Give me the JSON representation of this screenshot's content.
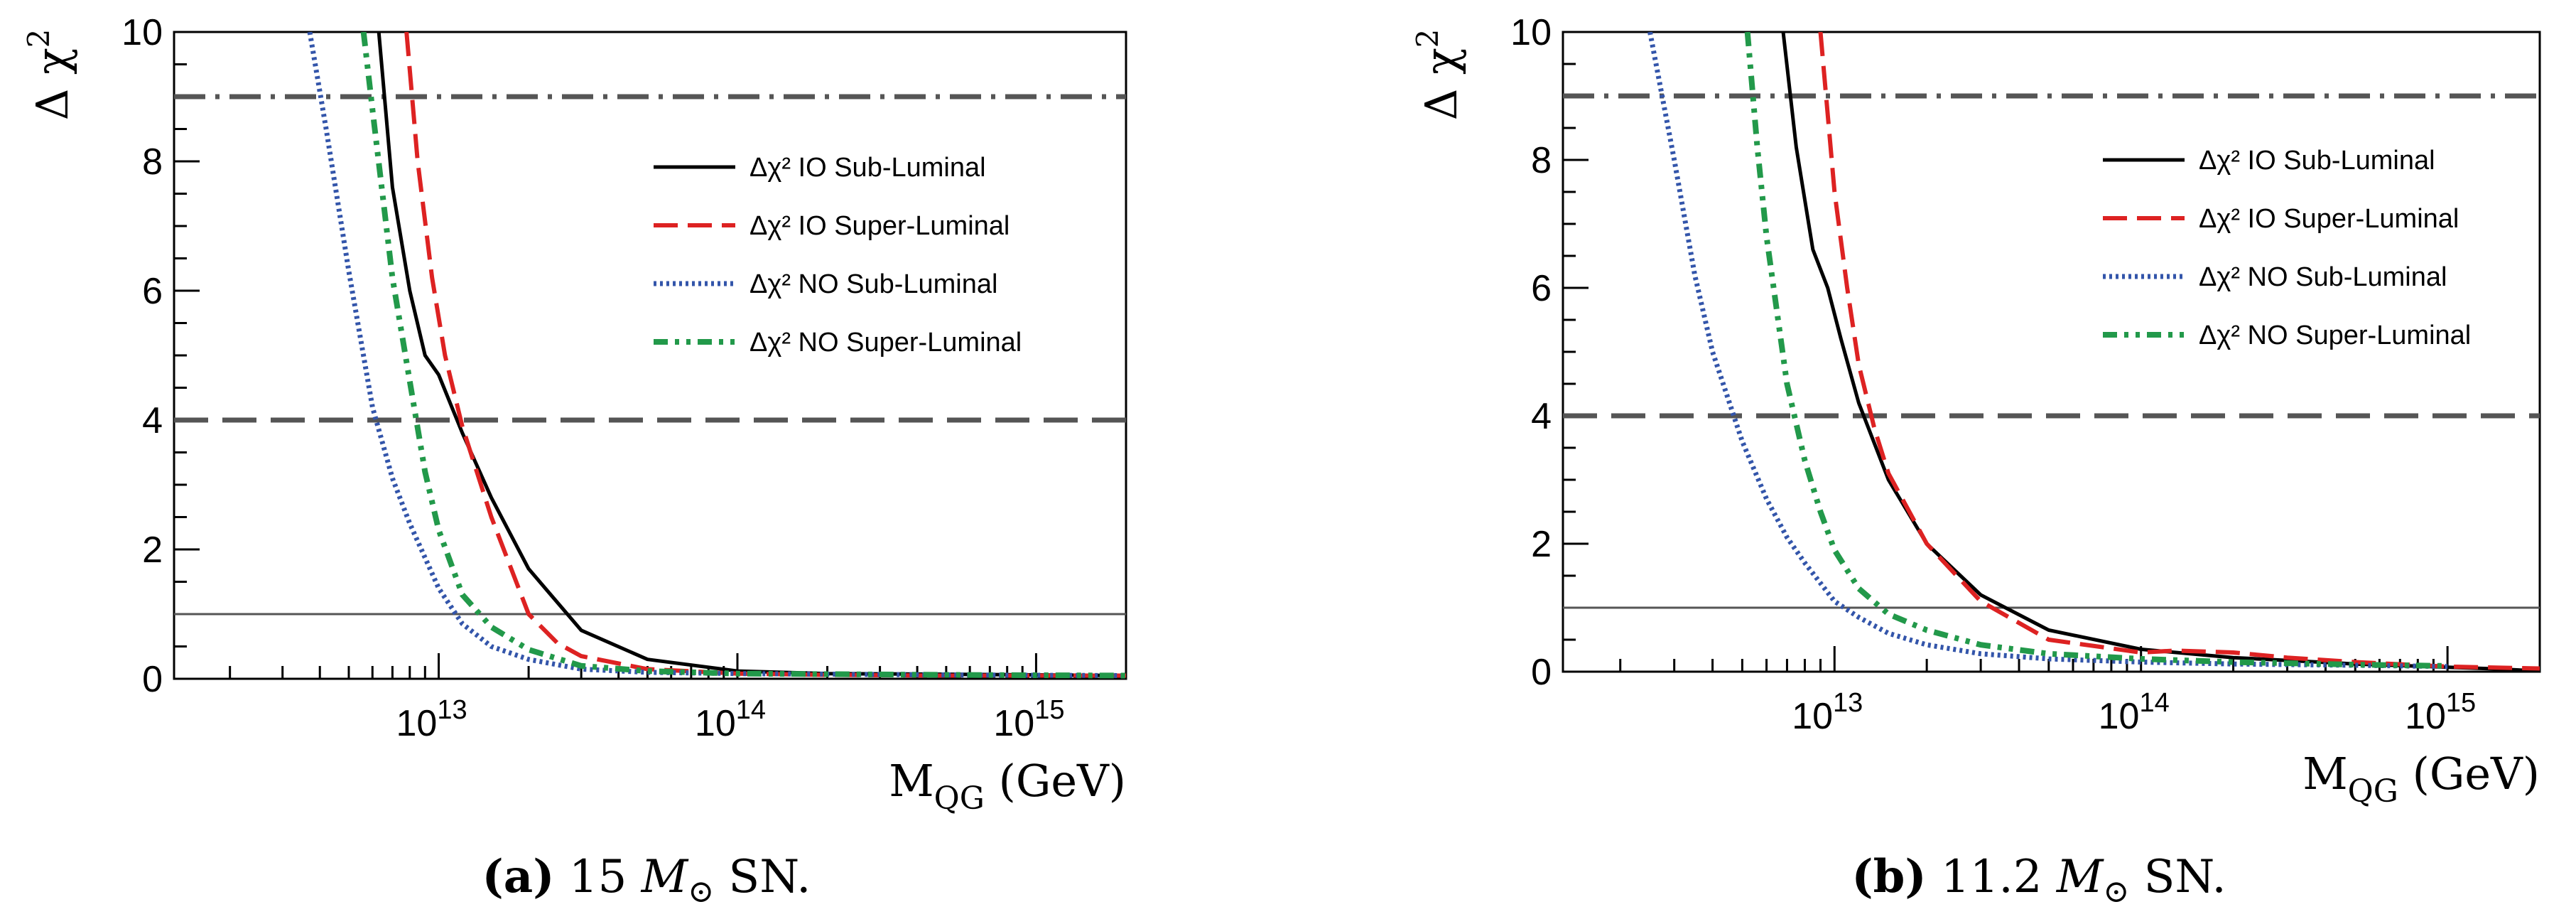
{
  "chart_data": [
    {
      "type": "line",
      "caption_label": "(a)",
      "caption_mass": "15",
      "caption_symbol": "M",
      "caption_sub": "⊙",
      "caption_tail": "SN.",
      "xlabel": "M",
      "xlabel_sub": "QG",
      "xlabel_unit": "(GeV)",
      "ylabel": "Δ χ",
      "ylabel_sup": "2",
      "xscale": "log",
      "xlim": [
        1300000000000.0,
        2000000000000000.0
      ],
      "ylim": [
        0,
        10
      ],
      "y_ticks": [
        "0",
        "2",
        "4",
        "6",
        "8",
        "10"
      ],
      "x_ticks": [
        {
          "base": "10",
          "exp": "13",
          "value": 10000000000000.0
        },
        {
          "base": "10",
          "exp": "14",
          "value": 100000000000000.0
        },
        {
          "base": "10",
          "exp": "15",
          "value": 1000000000000000.0
        }
      ],
      "hlines": [
        {
          "y": 1,
          "style": "solid",
          "color": "#555555"
        },
        {
          "y": 4,
          "style": "dashed",
          "color": "#555555"
        },
        {
          "y": 9,
          "style": "dashdot",
          "color": "#555555"
        }
      ],
      "legend_position": "right",
      "series": [
        {
          "name": "Δχ² IO Sub-Luminal",
          "style": "solid",
          "color": "#000000",
          "x": [
            6300000000000.0,
            7000000000000.0,
            8000000000000.0,
            9000000000000.0,
            10000000000000.0,
            12000000000000.0,
            15000000000000.0,
            20000000000000.0,
            30000000000000.0,
            50000000000000.0,
            100000000000000.0,
            200000000000000.0,
            500000000000000.0,
            1000000000000000.0,
            2000000000000000.0
          ],
          "y": [
            10,
            7.6,
            6.0,
            5.0,
            4.7,
            3.8,
            2.8,
            1.7,
            0.75,
            0.3,
            0.12,
            0.08,
            0.07,
            0.06,
            0.05
          ]
        },
        {
          "name": "Δχ² IO Super-Luminal",
          "style": "dashed",
          "color": "#dd2222",
          "x": [
            7800000000000.0,
            8500000000000.0,
            9500000000000.0,
            10500000000000.0,
            12000000000000.0,
            15000000000000.0,
            20000000000000.0,
            25000000000000.0,
            30000000000000.0,
            50000000000000.0,
            100000000000000.0,
            200000000000000.0,
            500000000000000.0,
            1000000000000000.0,
            2000000000000000.0
          ],
          "y": [
            10,
            8.0,
            6.2,
            5.0,
            3.9,
            2.5,
            1.0,
            0.55,
            0.35,
            0.15,
            0.08,
            0.06,
            0.05,
            0.05,
            0.05
          ]
        },
        {
          "name": "Δχ² NO Sub-Luminal",
          "style": "dotted",
          "color": "#3355aa",
          "x": [
            3700000000000.0,
            4200000000000.0,
            5000000000000.0,
            6000000000000.0,
            7000000000000.0,
            8000000000000.0,
            10000000000000.0,
            12000000000000.0,
            15000000000000.0,
            20000000000000.0,
            30000000000000.0,
            50000000000000.0,
            100000000000000.0,
            500000000000000.0,
            2000000000000000.0
          ],
          "y": [
            10,
            8.5,
            6.3,
            4.2,
            3.1,
            2.4,
            1.4,
            0.85,
            0.5,
            0.3,
            0.15,
            0.1,
            0.08,
            0.06,
            0.05
          ]
        },
        {
          "name": "Δχ² NO Super-Luminal",
          "style": "dashdotdot",
          "color": "#22994a",
          "x": [
            5600000000000.0,
            6000000000000.0,
            7000000000000.0,
            8000000000000.0,
            9000000000000.0,
            10000000000000.0,
            12000000000000.0,
            15000000000000.0,
            20000000000000.0,
            30000000000000.0,
            50000000000000.0,
            100000000000000.0,
            500000000000000.0,
            2000000000000000.0
          ],
          "y": [
            10,
            8.8,
            6.2,
            4.6,
            3.2,
            2.3,
            1.3,
            0.8,
            0.45,
            0.2,
            0.12,
            0.08,
            0.06,
            0.05
          ]
        }
      ]
    },
    {
      "type": "line",
      "caption_label": "(b)",
      "caption_mass": "11.2",
      "caption_symbol": "M",
      "caption_sub": "⊙",
      "caption_tail": "SN.",
      "xlabel": "M",
      "xlabel_sub": "QG",
      "xlabel_unit": "(GeV)",
      "ylabel": "Δ χ",
      "ylabel_sup": "2",
      "xscale": "log",
      "xlim": [
        1300000000000.0,
        2000000000000000.0
      ],
      "ylim": [
        0,
        10
      ],
      "y_ticks": [
        "0",
        "2",
        "4",
        "6",
        "8",
        "10"
      ],
      "x_ticks": [
        {
          "base": "10",
          "exp": "13",
          "value": 10000000000000.0
        },
        {
          "base": "10",
          "exp": "14",
          "value": 100000000000000.0
        },
        {
          "base": "10",
          "exp": "15",
          "value": 1000000000000000.0
        }
      ],
      "hlines": [
        {
          "y": 1,
          "style": "solid",
          "color": "#555555"
        },
        {
          "y": 4,
          "style": "dashed",
          "color": "#555555"
        },
        {
          "y": 9,
          "style": "dashdot",
          "color": "#555555"
        }
      ],
      "legend_position": "right",
      "series": [
        {
          "name": "Δχ² IO Sub-Luminal",
          "style": "solid",
          "color": "#000000",
          "x": [
            6800000000000.0,
            7500000000000.0,
            8500000000000.0,
            9500000000000.0,
            10500000000000.0,
            12000000000000.0,
            15000000000000.0,
            20000000000000.0,
            30000000000000.0,
            50000000000000.0,
            100000000000000.0,
            200000000000000.0,
            500000000000000.0,
            1000000000000000.0,
            1500000000000000.0,
            2000000000000000.0
          ],
          "y": [
            10,
            8.2,
            6.6,
            6.0,
            5.2,
            4.2,
            3.0,
            2.0,
            1.2,
            0.65,
            0.35,
            0.22,
            0.12,
            0.07,
            0.04,
            0.01
          ]
        },
        {
          "name": "Δχ² IO Super-Luminal",
          "style": "dashed",
          "color": "#dd2222",
          "x": [
            9000000000000.0,
            10000000000000.0,
            11000000000000.0,
            12000000000000.0,
            13500000000000.0,
            15000000000000.0,
            20000000000000.0,
            30000000000000.0,
            50000000000000.0,
            100000000000000.0,
            130000000000000.0,
            200000000000000.0,
            300000000000000.0,
            500000000000000.0,
            1000000000000000.0,
            2000000000000000.0
          ],
          "y": [
            10,
            7.5,
            6.0,
            4.8,
            3.8,
            3.1,
            2.0,
            1.1,
            0.5,
            0.3,
            0.33,
            0.3,
            0.22,
            0.15,
            0.08,
            0.05
          ]
        },
        {
          "name": "Δχ² NO Sub-Luminal",
          "style": "dotted",
          "color": "#3355aa",
          "x": [
            2500000000000.0,
            3000000000000.0,
            3500000000000.0,
            4000000000000.0,
            5000000000000.0,
            6000000000000.0,
            7000000000000.0,
            8000000000000.0,
            10000000000000.0,
            12000000000000.0,
            15000000000000.0,
            20000000000000.0,
            30000000000000.0,
            50000000000000.0,
            100000000000000.0,
            200000000000000.0,
            500000000000000.0,
            1000000000000000.0
          ],
          "y": [
            10,
            8.0,
            6.2,
            5.0,
            3.6,
            2.7,
            2.1,
            1.7,
            1.1,
            0.85,
            0.6,
            0.42,
            0.28,
            0.2,
            0.15,
            0.12,
            0.1,
            0.08
          ]
        },
        {
          "name": "Δχ² NO Super-Luminal",
          "style": "dashdotdot",
          "color": "#22994a",
          "x": [
            5200000000000.0,
            5600000000000.0,
            6000000000000.0,
            6500000000000.0,
            7000000000000.0,
            8000000000000.0,
            9000000000000.0,
            10000000000000.0,
            12000000000000.0,
            15000000000000.0,
            20000000000000.0,
            30000000000000.0,
            50000000000000.0,
            100000000000000.0,
            200000000000000.0,
            500000000000000.0,
            1000000000000000.0
          ],
          "y": [
            10,
            8.2,
            6.8,
            5.6,
            4.5,
            3.3,
            2.5,
            1.9,
            1.3,
            0.9,
            0.65,
            0.42,
            0.28,
            0.2,
            0.15,
            0.11,
            0.09
          ]
        }
      ]
    }
  ]
}
